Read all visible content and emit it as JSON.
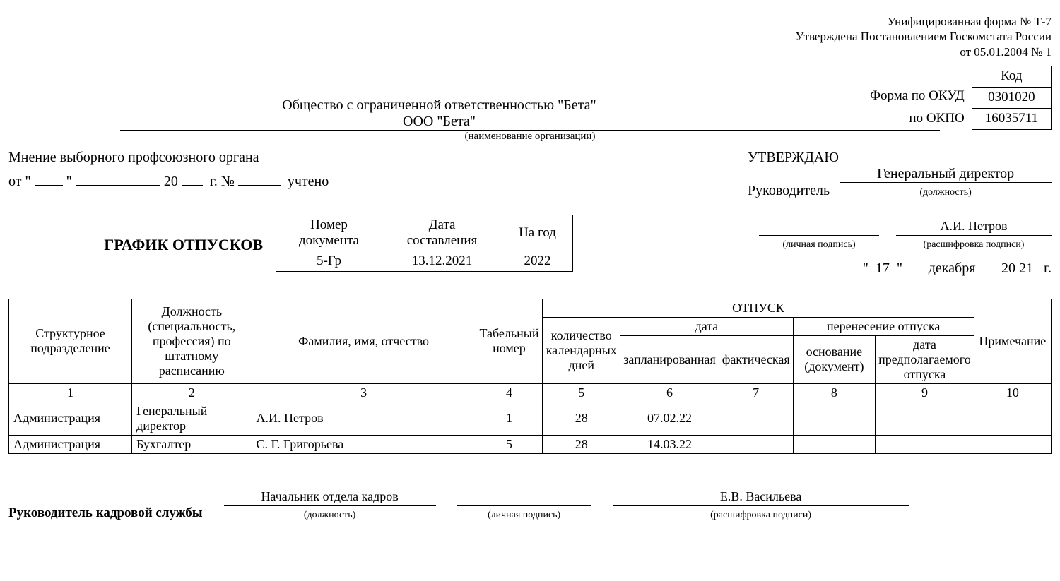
{
  "form_header": {
    "line1": "Унифицированная форма № Т-7",
    "line2": "Утверждена Постановлением Госкомстата России",
    "line3": "от 05.01.2004 № 1"
  },
  "codes": {
    "header": "Код",
    "okud_label": "Форма по ОКУД",
    "okud_value": "0301020",
    "okpo_label": "по ОКПО",
    "okpo_value": "16035711"
  },
  "organization": {
    "full": "Общество с ограниченной ответственностью \"Бета\"",
    "short": "ООО \"Бета\"",
    "caption": "(наименование организации)"
  },
  "union_opinion": {
    "line1": "Мнение выборного профсоюзного органа",
    "prefix_ot": "от \"",
    "day": "",
    "quote_close": "\"",
    "month": "",
    "year_prefix": "20",
    "year_suffix": "",
    "year_after": "г. №",
    "num": "",
    "tail": "учтено"
  },
  "approval": {
    "title": "УТВЕРЖДАЮ",
    "manager_label": "Руководитель",
    "position": "Генеральный директор",
    "position_caption": "(должность)",
    "signature_caption": "(личная подпись)",
    "decoded": "А.И. Петров",
    "decoded_caption": "(расшифровка подписи)",
    "date_day": "17",
    "date_month": "декабря",
    "date_year_prefix": "20",
    "date_year": "21",
    "date_suffix": "г."
  },
  "doc_title": "ГРАФИК ОТПУСКОВ",
  "doc_meta": {
    "num_label": "Номер документа",
    "date_label": "Дата составления",
    "year_label": "На год",
    "num": "5-Гр",
    "date": "13.12.2021",
    "year": "2022"
  },
  "table": {
    "headers": {
      "unit": "Структурное подразделение",
      "position": "Должность (специальность, профессия) по штатному расписанию",
      "fio": "Фамилия, имя, отчество",
      "tabnum": "Табельный номер",
      "vacation": "ОТПУСК",
      "days": "количество календарных дней",
      "date_group": "дата",
      "planned": "запланированная",
      "actual": "фактическая",
      "transfer": "перенесение отпуска",
      "basis": "основание (документ)",
      "expected": "дата предполагаемого отпуска",
      "note": "Примечание"
    },
    "numbers": [
      "1",
      "2",
      "3",
      "4",
      "5",
      "6",
      "7",
      "8",
      "9",
      "10"
    ],
    "rows": [
      {
        "unit": "Администрация",
        "position": "Генеральный директор",
        "fio": "А.И. Петров",
        "tab": "1",
        "days": "28",
        "planned": "07.02.22",
        "actual": "",
        "basis": "",
        "expected": "",
        "note": ""
      },
      {
        "unit": "Администрация",
        "position": "Бухгалтер",
        "fio": "С. Г. Григорьева",
        "tab": "5",
        "days": "28",
        "planned": "14.03.22",
        "actual": "",
        "basis": "",
        "expected": "",
        "note": ""
      }
    ]
  },
  "hr_signature": {
    "label": "Руководитель кадровой службы",
    "position": "Начальник отдела кадров",
    "position_caption": "(должность)",
    "signature_caption": "(личная подпись)",
    "decoded": "Е.В. Васильева",
    "decoded_caption": "(расшифровка подписи)"
  }
}
